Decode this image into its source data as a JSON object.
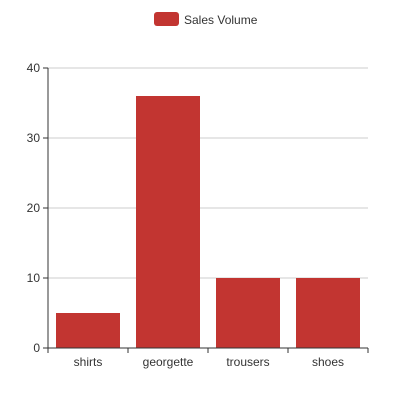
{
  "chart_data": {
    "type": "bar",
    "categories": [
      "shirts",
      "georgette",
      "trousers",
      "shoes"
    ],
    "series": [
      {
        "name": "Sales Volume",
        "values": [
          5,
          36,
          10,
          10
        ],
        "color": "#c23531"
      }
    ],
    "ylim": [
      0,
      40
    ],
    "yticks": [
      0,
      10,
      20,
      30,
      40
    ],
    "grid": true,
    "legend_position": "top-center"
  }
}
